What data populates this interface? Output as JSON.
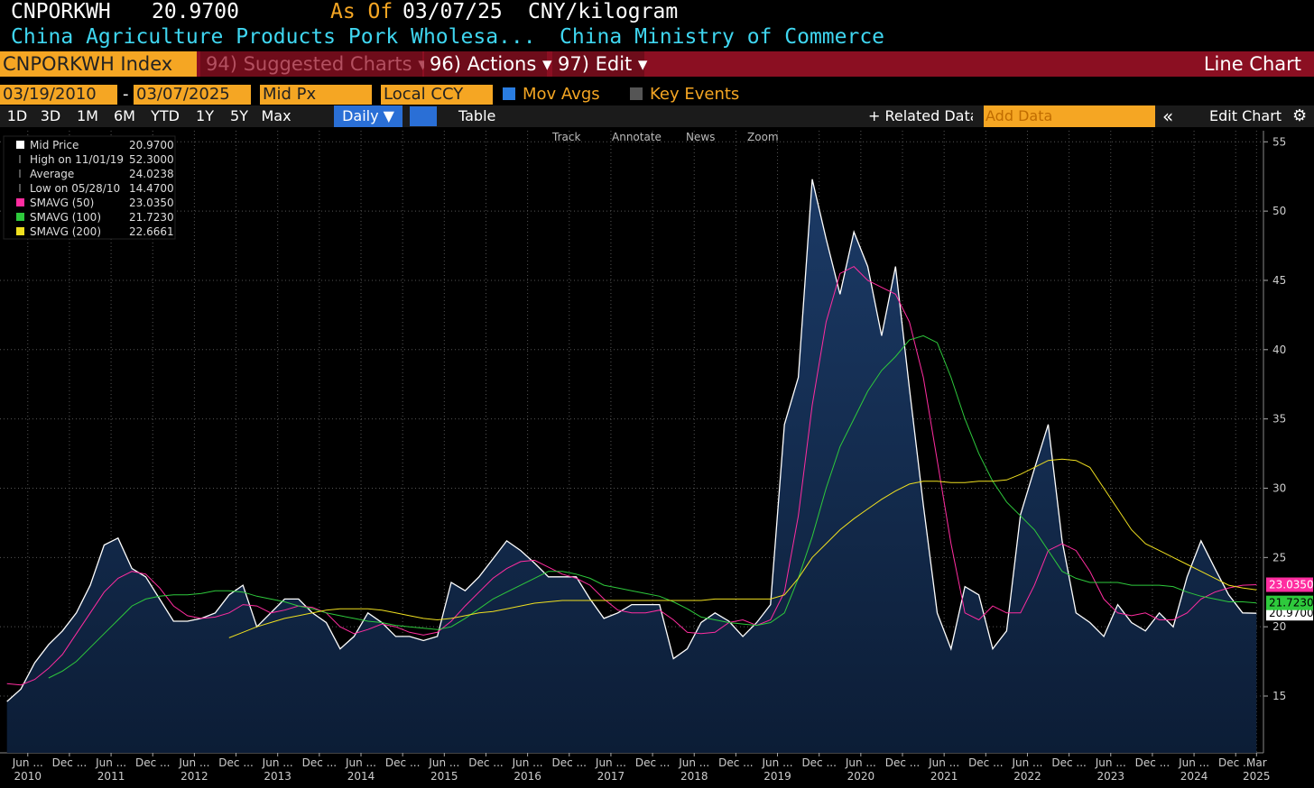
{
  "ui": {
    "ticker": "CNPORKWH",
    "price": "20.9700",
    "as_of_label": "As Of",
    "as_of_date": "03/07/25",
    "unit": "CNY/kilogram",
    "description": "China Agriculture Products Pork Wholesa...",
    "source": "China Ministry of Commerce",
    "security": "CNPORKWH Index",
    "menu": [
      "94) Suggested Charts ▾",
      "96) Actions ▾",
      "97) Edit ▾"
    ],
    "view": "Line Chart",
    "start_date": "03/19/2010",
    "dash": "-",
    "end_date": "03/07/2025",
    "field": "Mid Px",
    "currency": "Local CCY",
    "mov_avgs": "Mov Avgs",
    "key_events": "Key Events",
    "periods": [
      "1D",
      "3D",
      "1M",
      "6M",
      "YTD",
      "1Y",
      "5Y",
      "Max"
    ],
    "frequency": "Daily ▼",
    "table": "Table",
    "related": "+ Related Data",
    "add_data": "Add Data",
    "collapse": "«",
    "edit_chart": "Edit Chart",
    "tools": [
      "Track",
      "Annotate",
      "News",
      "Zoom"
    ],
    "stats": [
      {
        "label": "High on 11/01/19",
        "value": "52.3000"
      },
      {
        "label": "Average",
        "value": "24.0238"
      },
      {
        "label": "Low on 05/28/10",
        "value": "14.4700"
      }
    ]
  },
  "chart_data": {
    "type": "line",
    "x": [
      "2010-03",
      "2010-05",
      "2010-07",
      "2010-09",
      "2010-11",
      "2011-01",
      "2011-03",
      "2011-05",
      "2011-07",
      "2011-09",
      "2011-11",
      "2012-01",
      "2012-03",
      "2012-05",
      "2012-07",
      "2012-09",
      "2012-11",
      "2013-01",
      "2013-03",
      "2013-05",
      "2013-07",
      "2013-09",
      "2013-11",
      "2014-01",
      "2014-03",
      "2014-05",
      "2014-07",
      "2014-09",
      "2014-11",
      "2015-01",
      "2015-03",
      "2015-05",
      "2015-07",
      "2015-09",
      "2015-11",
      "2016-01",
      "2016-03",
      "2016-05",
      "2016-07",
      "2016-09",
      "2016-11",
      "2017-01",
      "2017-03",
      "2017-05",
      "2017-07",
      "2017-09",
      "2017-11",
      "2018-01",
      "2018-03",
      "2018-05",
      "2018-07",
      "2018-09",
      "2018-11",
      "2019-01",
      "2019-03",
      "2019-05",
      "2019-07",
      "2019-09",
      "2019-11",
      "2020-01",
      "2020-03",
      "2020-05",
      "2020-07",
      "2020-09",
      "2020-11",
      "2021-01",
      "2021-03",
      "2021-05",
      "2021-07",
      "2021-09",
      "2021-11",
      "2022-01",
      "2022-03",
      "2022-05",
      "2022-07",
      "2022-09",
      "2022-11",
      "2023-01",
      "2023-03",
      "2023-05",
      "2023-07",
      "2023-09",
      "2023-11",
      "2024-01",
      "2024-03",
      "2024-05",
      "2024-07",
      "2024-09",
      "2024-11",
      "2025-01",
      "2025-03"
    ],
    "series": [
      {
        "name": "Mid Price",
        "color": "#ffffff",
        "last_label": "20.9700",
        "tag_text": "#000000",
        "area": true,
        "values": [
          14.6,
          15.5,
          17.4,
          18.7,
          19.7,
          21,
          23,
          25.9,
          26.4,
          24.2,
          23.6,
          22,
          20.4,
          20.4,
          20.6,
          21,
          22.3,
          23,
          20,
          21,
          22,
          22,
          21,
          20.3,
          18.4,
          19.3,
          21,
          20.3,
          19.3,
          19.3,
          19,
          19.3,
          23.2,
          22.6,
          23.6,
          24.9,
          26.2,
          25.5,
          24.6,
          23.6,
          23.6,
          23.6,
          22,
          20.6,
          21,
          21.6,
          21.6,
          21.6,
          17.7,
          18.4,
          20.3,
          21,
          20.4,
          19.3,
          20.3,
          21.6,
          34.6,
          38,
          52.3,
          48,
          44,
          48.5,
          46,
          41,
          46,
          37.2,
          28.8,
          21,
          18.4,
          22.9,
          22.3,
          18.4,
          19.7,
          28.1,
          31.4,
          34.6,
          26.2,
          21,
          20.3,
          19.3,
          21.6,
          20.3,
          19.7,
          21,
          20,
          23.6,
          26.2,
          24.2,
          22.3,
          21,
          20.97
        ]
      },
      {
        "name": "SMAVG (50)",
        "color": "#ff2da0",
        "last_label": "23.0350",
        "tag_text": "#ffffff",
        "values": [
          15.9,
          15.8,
          16.2,
          17,
          18,
          19.5,
          21,
          22.5,
          23.5,
          24,
          23.8,
          22.8,
          21.5,
          20.8,
          20.6,
          20.7,
          21,
          21.6,
          21.5,
          21,
          21.2,
          21.5,
          21.4,
          21,
          20,
          19.5,
          19.8,
          20.2,
          20,
          19.6,
          19.4,
          19.6,
          20.4,
          21.5,
          22.5,
          23.5,
          24.2,
          24.7,
          24.8,
          24.3,
          23.8,
          23.5,
          23,
          22,
          21.2,
          21,
          21,
          21.2,
          20.5,
          19.6,
          19.5,
          19.6,
          20.3,
          20.5,
          20.1,
          20.5,
          22.5,
          28,
          36,
          42,
          45.5,
          46,
          45,
          44.5,
          44,
          42,
          38,
          32,
          26,
          21,
          20.5,
          21.5,
          21,
          21,
          23,
          25.5,
          26,
          25.5,
          24,
          22,
          21,
          20.8,
          21,
          20.5,
          20.5,
          21,
          22,
          22.5,
          22.8,
          23,
          23.035
        ]
      },
      {
        "name": "SMAVG (100)",
        "color": "#2ec93c",
        "last_label": "21.7230",
        "tag_text": "#000000",
        "values": [
          null,
          null,
          null,
          16.3,
          16.8,
          17.5,
          18.5,
          19.5,
          20.5,
          21.5,
          22,
          22.2,
          22.3,
          22.3,
          22.4,
          22.6,
          22.6,
          22.5,
          22.2,
          22,
          21.8,
          21.5,
          21.3,
          21,
          20.8,
          20.6,
          20.4,
          20.3,
          20.1,
          20,
          19.9,
          19.8,
          20,
          20.6,
          21.3,
          22,
          22.5,
          23,
          23.5,
          24,
          24,
          23.8,
          23.5,
          23,
          22.8,
          22.6,
          22.4,
          22.2,
          21.8,
          21.3,
          20.7,
          20.5,
          20.3,
          20.2,
          20.1,
          20.3,
          21,
          23.5,
          26.5,
          30,
          33,
          35,
          37,
          38.5,
          39.5,
          40.7,
          41,
          40.5,
          38,
          35,
          32.5,
          30.5,
          29,
          28,
          27,
          25.5,
          24,
          23.5,
          23.2,
          23.2,
          23.2,
          23,
          23,
          23,
          22.9,
          22.5,
          22.2,
          22,
          21.8,
          21.8,
          21.723
        ]
      },
      {
        "name": "SMAVG (200)",
        "color": "#f0e020",
        "last_label": "22.6661",
        "tag_text": "#000000",
        "values": [
          null,
          null,
          null,
          null,
          null,
          null,
          null,
          null,
          null,
          null,
          null,
          null,
          null,
          null,
          null,
          null,
          19.2,
          19.6,
          20,
          20.3,
          20.6,
          20.8,
          21,
          21.2,
          21.3,
          21.3,
          21.3,
          21.2,
          21,
          20.8,
          20.6,
          20.5,
          20.6,
          20.8,
          21,
          21.1,
          21.3,
          21.5,
          21.7,
          21.8,
          21.9,
          21.9,
          21.9,
          21.9,
          21.9,
          21.9,
          21.9,
          21.9,
          21.9,
          21.9,
          21.9,
          22,
          22,
          22,
          22,
          22,
          22.3,
          23.5,
          25,
          26,
          27,
          27.8,
          28.5,
          29.2,
          29.8,
          30.3,
          30.5,
          30.5,
          30.4,
          30.4,
          30.5,
          30.5,
          30.6,
          31,
          31.5,
          32,
          32.1,
          32,
          31.5,
          30,
          28.5,
          27,
          26,
          25.5,
          25,
          24.5,
          24,
          23.5,
          23,
          22.8,
          22.666
        ]
      }
    ],
    "xlim": [
      "2010-02",
      "2025-04"
    ],
    "xticks": [
      {
        "value": "2010-06",
        "label": "Jun ..."
      },
      {
        "value": "2010-12",
        "label": "Dec ..."
      },
      {
        "value": "2011-06",
        "label": "Jun ..."
      },
      {
        "value": "2011-12",
        "label": "Dec ..."
      },
      {
        "value": "2012-06",
        "label": "Jun ..."
      },
      {
        "value": "2012-12",
        "label": "Dec ..."
      },
      {
        "value": "2013-06",
        "label": "Jun ..."
      },
      {
        "value": "2013-12",
        "label": "Dec ..."
      },
      {
        "value": "2014-06",
        "label": "Jun ..."
      },
      {
        "value": "2014-12",
        "label": "Dec ..."
      },
      {
        "value": "2015-06",
        "label": "Jun ..."
      },
      {
        "value": "2015-12",
        "label": "Dec ..."
      },
      {
        "value": "2016-06",
        "label": "Jun ..."
      },
      {
        "value": "2016-12",
        "label": "Dec ..."
      },
      {
        "value": "2017-06",
        "label": "Jun ..."
      },
      {
        "value": "2017-12",
        "label": "Dec ..."
      },
      {
        "value": "2018-06",
        "label": "Jun ..."
      },
      {
        "value": "2018-12",
        "label": "Dec ..."
      },
      {
        "value": "2019-06",
        "label": "Jun ..."
      },
      {
        "value": "2019-12",
        "label": "Dec ..."
      },
      {
        "value": "2020-06",
        "label": "Jun ..."
      },
      {
        "value": "2020-12",
        "label": "Dec ..."
      },
      {
        "value": "2021-06",
        "label": "Jun ..."
      },
      {
        "value": "2021-12",
        "label": "Dec ..."
      },
      {
        "value": "2022-06",
        "label": "Jun ..."
      },
      {
        "value": "2022-12",
        "label": "Dec ..."
      },
      {
        "value": "2023-06",
        "label": "Jun ..."
      },
      {
        "value": "2023-12",
        "label": "Dec ..."
      },
      {
        "value": "2024-06",
        "label": "Jun ..."
      },
      {
        "value": "2024-12",
        "label": "Dec ..."
      },
      {
        "value": "2025-03",
        "label": "Mar"
      }
    ],
    "year_ticks": [
      {
        "value": "2010-06",
        "label": "2010"
      },
      {
        "value": "2011-06",
        "label": "2011"
      },
      {
        "value": "2012-06",
        "label": "2012"
      },
      {
        "value": "2013-06",
        "label": "2013"
      },
      {
        "value": "2014-06",
        "label": "2014"
      },
      {
        "value": "2015-06",
        "label": "2015"
      },
      {
        "value": "2016-06",
        "label": "2016"
      },
      {
        "value": "2017-06",
        "label": "2017"
      },
      {
        "value": "2018-06",
        "label": "2018"
      },
      {
        "value": "2019-06",
        "label": "2019"
      },
      {
        "value": "2020-06",
        "label": "2020"
      },
      {
        "value": "2021-06",
        "label": "2021"
      },
      {
        "value": "2022-06",
        "label": "2022"
      },
      {
        "value": "2023-06",
        "label": "2023"
      },
      {
        "value": "2024-06",
        "label": "2024"
      },
      {
        "value": "2025-03",
        "label": "2025"
      }
    ],
    "ylim": [
      10.9,
      55.8
    ],
    "yticks": [
      15,
      20,
      25,
      30,
      35,
      40,
      45,
      50,
      55
    ],
    "grid": true
  }
}
